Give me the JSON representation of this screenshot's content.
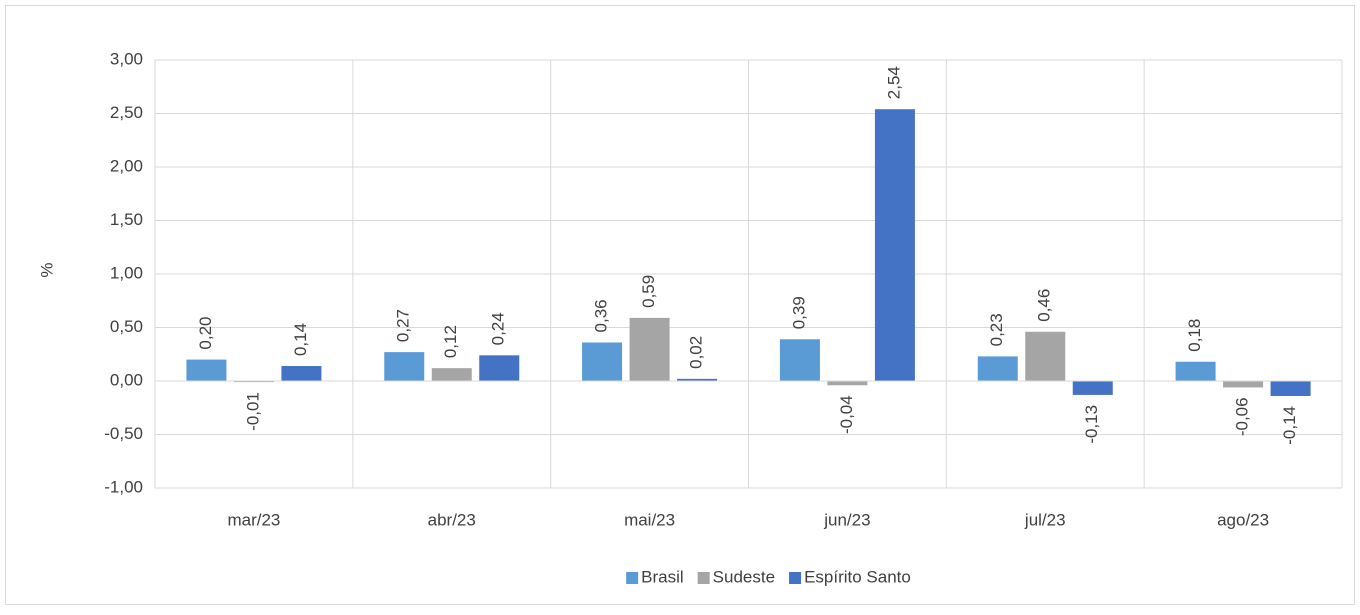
{
  "chart_data": {
    "type": "bar",
    "y_label": "%",
    "categories": [
      "mar/23",
      "abr/23",
      "mai/23",
      "jun/23",
      "jul/23",
      "ago/23"
    ],
    "series": [
      {
        "name": "Brasil",
        "color": "#5b9bd5",
        "values": [
          0.2,
          0.27,
          0.36,
          0.39,
          0.23,
          0.18
        ],
        "value_labels": [
          "0,20",
          "0,27",
          "0,36",
          "0,39",
          "0,23",
          "0,18"
        ]
      },
      {
        "name": "Sudeste",
        "color": "#a5a5a5",
        "values": [
          -0.01,
          0.12,
          0.59,
          -0.04,
          0.46,
          -0.06
        ],
        "value_labels": [
          "-0,01",
          "0,12",
          "0,59",
          "-0,04",
          "0,46",
          "-0,06"
        ]
      },
      {
        "name": "Espírito Santo",
        "color": "#4472c4",
        "values": [
          0.14,
          0.24,
          0.02,
          2.54,
          -0.13,
          -0.14
        ],
        "value_labels": [
          "0,14",
          "0,24",
          "0,02",
          "2,54",
          "-0,13",
          "-0,14"
        ]
      }
    ],
    "ylim": [
      -1,
      3
    ],
    "yticks": [
      {
        "value": -1,
        "label": "-1,00"
      },
      {
        "value": -0.5,
        "label": "-0,50"
      },
      {
        "value": 0,
        "label": "0,00"
      },
      {
        "value": 0.5,
        "label": "0,50"
      },
      {
        "value": 1,
        "label": "1,00"
      },
      {
        "value": 1.5,
        "label": "1,50"
      },
      {
        "value": 2,
        "label": "2,00"
      },
      {
        "value": 2.5,
        "label": "2,50"
      },
      {
        "value": 3,
        "label": "3,00"
      }
    ],
    "grid": true,
    "legend": "bottom"
  }
}
